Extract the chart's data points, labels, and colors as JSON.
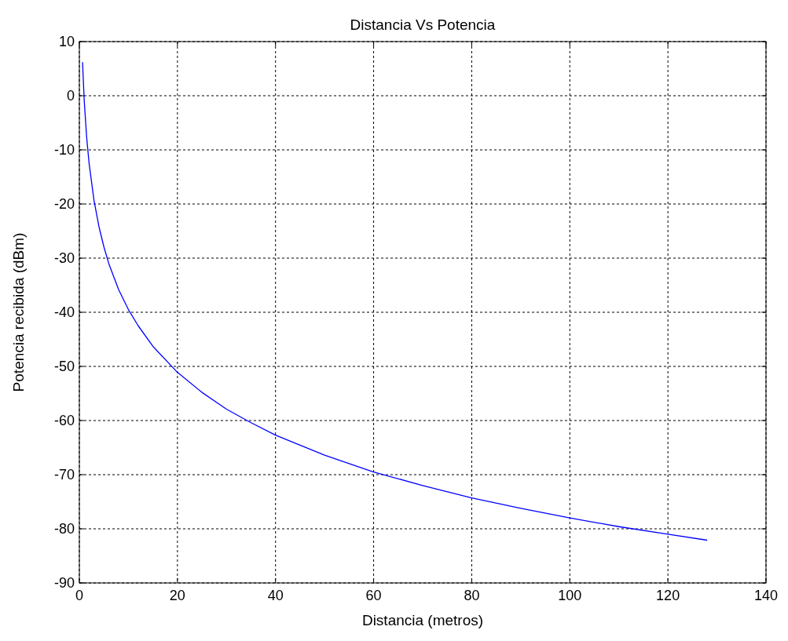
{
  "chart_data": {
    "type": "line",
    "title": "Distancia Vs Potencia",
    "xlabel": "Distancia (metros)",
    "ylabel": "Potencia recibida (dBm)",
    "xlim": [
      0,
      140
    ],
    "xticks": [
      0,
      20,
      40,
      60,
      80,
      100,
      120,
      140
    ],
    "ylim": [
      -90,
      10
    ],
    "yticks": [
      -90,
      -80,
      -70,
      -60,
      -50,
      -40,
      -30,
      -20,
      -10,
      0,
      10
    ],
    "grid": true,
    "line_style": "solid",
    "series": [
      {
        "color": "#0000ff",
        "x": [
          0.65,
          1,
          1.5,
          2,
          3,
          4,
          5,
          6,
          8,
          10,
          12,
          15,
          20,
          25,
          30,
          35,
          40,
          50,
          60,
          70,
          80,
          90,
          100,
          110,
          120,
          128
        ],
        "values": [
          6.2,
          -1.0,
          -7.8,
          -12.6,
          -19.4,
          -24.2,
          -27.9,
          -31.0,
          -35.8,
          -39.5,
          -42.5,
          -46.3,
          -51.1,
          -54.8,
          -57.9,
          -60.4,
          -62.7,
          -66.4,
          -69.5,
          -72.0,
          -74.3,
          -76.2,
          -78.0,
          -79.6,
          -81.0,
          -82.1
        ]
      }
    ]
  }
}
